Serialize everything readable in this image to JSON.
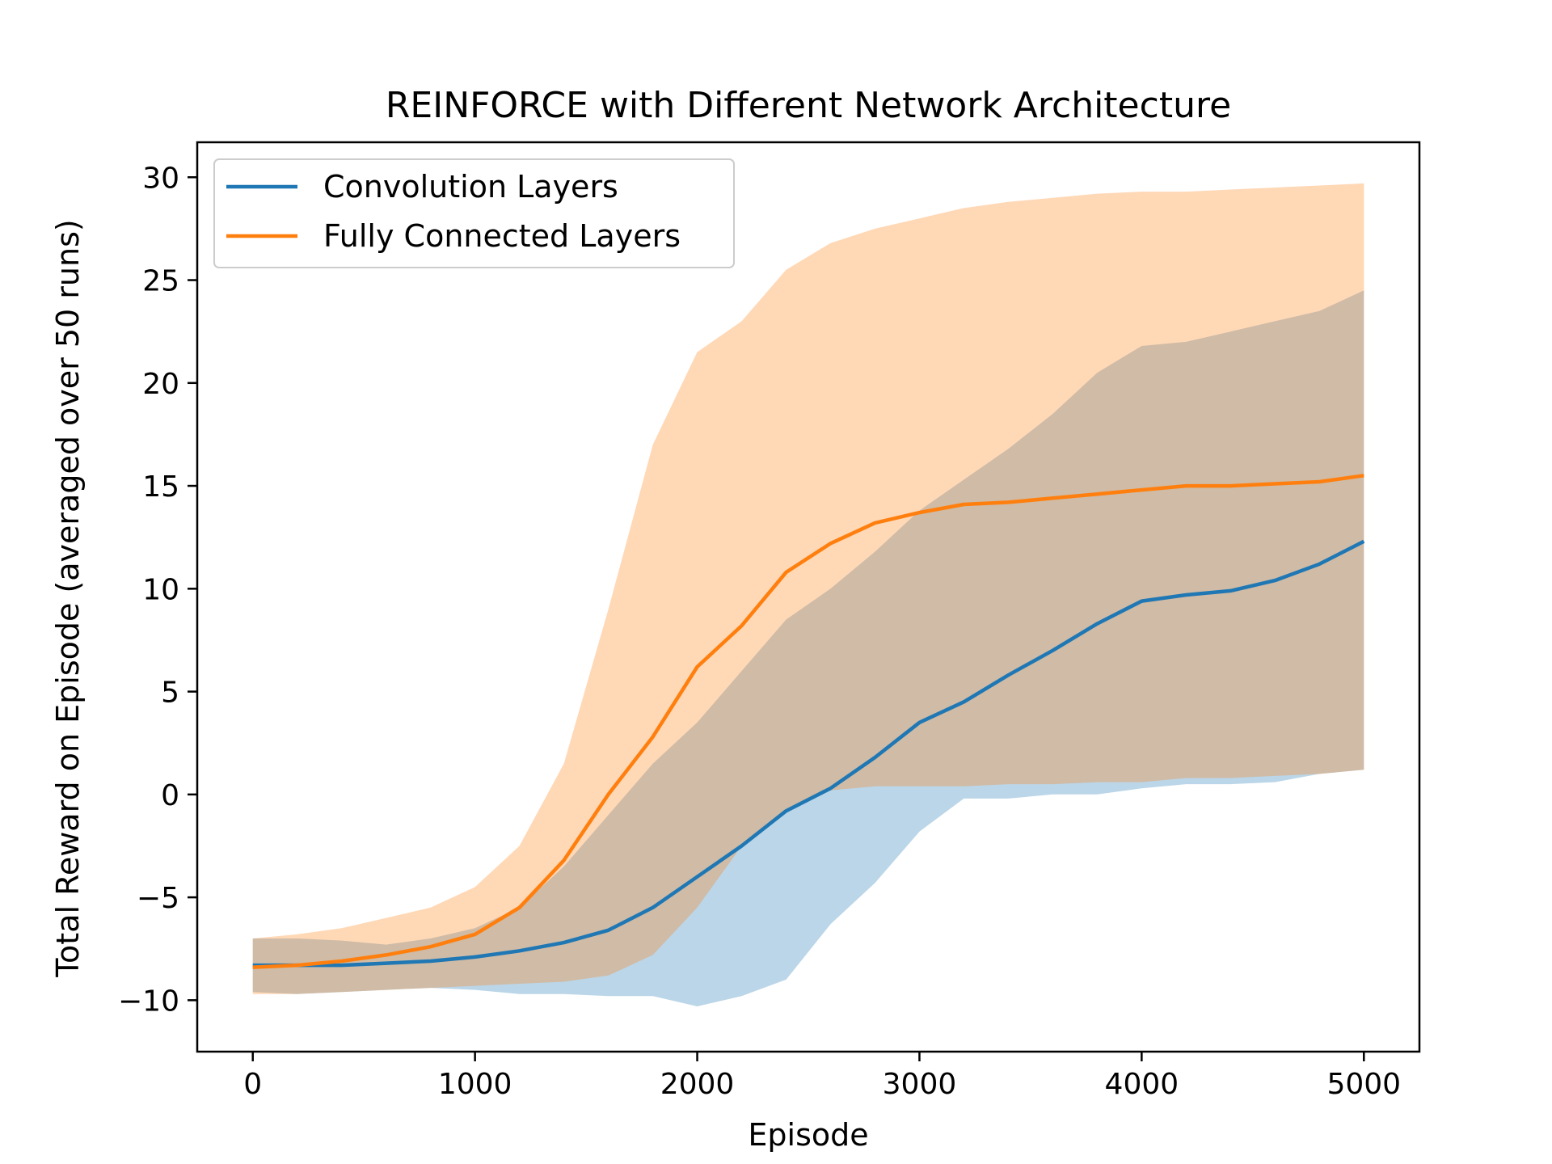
{
  "chart_data": {
    "type": "line",
    "title": "REINFORCE with Different Network Architecture",
    "xlabel": "Episode",
    "ylabel": "Total Reward on Episode (averaged over 50 runs)",
    "xlim": [
      -250,
      5250
    ],
    "ylim": [
      -12.5,
      31.7
    ],
    "xticks": [
      0,
      1000,
      2000,
      3000,
      4000,
      5000
    ],
    "xtick_labels": [
      "0",
      "1000",
      "2000",
      "3000",
      "4000",
      "5000"
    ],
    "yticks": [
      -10,
      -5,
      0,
      5,
      10,
      15,
      20,
      25,
      30
    ],
    "ytick_labels": [
      "−10",
      "−5",
      "0",
      "5",
      "10",
      "15",
      "20",
      "25",
      "30"
    ],
    "legend_position": "upper-left",
    "grid": false,
    "series": [
      {
        "name": "Convolution Layers",
        "color": "#1f77b4",
        "band_color": "#1f77b4",
        "x": [
          0,
          200,
          400,
          600,
          800,
          1000,
          1200,
          1400,
          1600,
          1800,
          2000,
          2200,
          2400,
          2600,
          2800,
          3000,
          3200,
          3400,
          3600,
          3800,
          4000,
          4200,
          4400,
          4600,
          4800,
          5000
        ],
        "mean": [
          -8.3,
          -8.3,
          -8.3,
          -8.2,
          -8.1,
          -7.9,
          -7.6,
          -7.2,
          -6.6,
          -5.5,
          -4.0,
          -2.5,
          -0.8,
          0.3,
          1.8,
          3.5,
          4.5,
          5.8,
          7.0,
          8.3,
          9.4,
          9.7,
          9.9,
          10.4,
          11.2,
          12.3
        ],
        "upper": [
          -7.0,
          -7.0,
          -7.1,
          -7.3,
          -7.0,
          -6.5,
          -5.5,
          -3.5,
          -1.0,
          1.5,
          3.5,
          6.0,
          8.5,
          10.0,
          11.8,
          13.8,
          15.3,
          16.8,
          18.5,
          20.5,
          21.8,
          22.0,
          22.5,
          23.0,
          23.5,
          24.5
        ],
        "lower": [
          -9.6,
          -9.7,
          -9.6,
          -9.5,
          -9.4,
          -9.5,
          -9.7,
          -9.7,
          -9.8,
          -9.8,
          -10.3,
          -9.8,
          -9.0,
          -6.3,
          -4.3,
          -1.8,
          -0.2,
          -0.2,
          0.0,
          0.0,
          0.3,
          0.5,
          0.5,
          0.6,
          1.0,
          1.2
        ]
      },
      {
        "name": "Fully Connected Layers",
        "color": "#ff7f0e",
        "band_color": "#ff7f0e",
        "x": [
          0,
          200,
          400,
          600,
          800,
          1000,
          1200,
          1400,
          1600,
          1800,
          2000,
          2200,
          2400,
          2600,
          2800,
          3000,
          3200,
          3400,
          3600,
          3800,
          4000,
          4200,
          4400,
          4600,
          4800,
          5000
        ],
        "mean": [
          -8.4,
          -8.3,
          -8.1,
          -7.8,
          -7.4,
          -6.8,
          -5.5,
          -3.2,
          0.0,
          2.8,
          6.2,
          8.2,
          10.8,
          12.2,
          13.2,
          13.7,
          14.1,
          14.2,
          14.4,
          14.6,
          14.8,
          15.0,
          15.0,
          15.1,
          15.2,
          15.5
        ],
        "upper": [
          -7.0,
          -6.8,
          -6.5,
          -6.0,
          -5.5,
          -4.5,
          -2.5,
          1.5,
          9.0,
          17.0,
          21.5,
          23.0,
          25.5,
          26.8,
          27.5,
          28.0,
          28.5,
          28.8,
          29.0,
          29.2,
          29.3,
          29.3,
          29.4,
          29.5,
          29.6,
          29.7
        ],
        "lower": [
          -9.7,
          -9.7,
          -9.6,
          -9.5,
          -9.4,
          -9.3,
          -9.2,
          -9.1,
          -8.8,
          -7.8,
          -5.5,
          -2.5,
          -0.8,
          0.2,
          0.4,
          0.4,
          0.4,
          0.5,
          0.5,
          0.6,
          0.6,
          0.8,
          0.8,
          0.9,
          1.0,
          1.2
        ]
      }
    ]
  }
}
